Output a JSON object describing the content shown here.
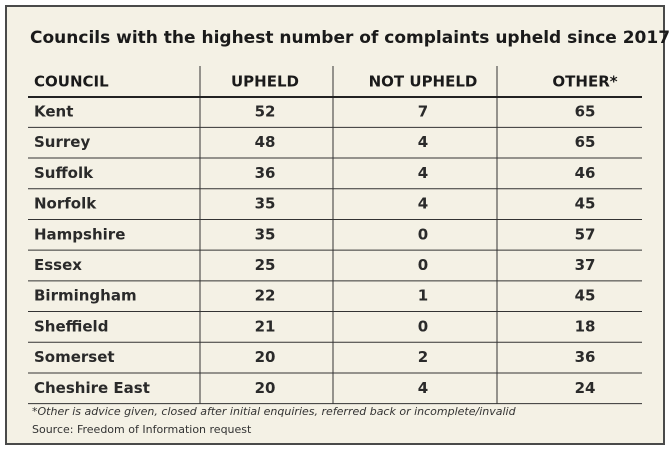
{
  "title": "Councils with the highest number of complaints upheld since 2017",
  "table": {
    "header": [
      "COUNCIL",
      "UPHELD",
      "NOT UPHELD",
      "OTHER*"
    ],
    "rows": [
      [
        "Kent",
        52,
        7,
        65
      ],
      [
        "Surrey",
        48,
        4,
        65
      ],
      [
        "Suffolk",
        36,
        4,
        46
      ],
      [
        "Norfolk",
        35,
        4,
        45
      ],
      [
        "Hampshire",
        35,
        0,
        57
      ],
      [
        "Essex",
        25,
        0,
        37
      ],
      [
        "Birmingham",
        22,
        1,
        45
      ],
      [
        "Sheffield",
        21,
        0,
        18
      ],
      [
        "Somerset",
        20,
        2,
        36
      ],
      [
        "Cheshire East",
        20,
        4,
        24
      ]
    ]
  },
  "footnote": "*Other is advice given, closed after initial enquiries, referred back or incomplete/invalid",
  "source": "Source: Freedom of Information request"
}
